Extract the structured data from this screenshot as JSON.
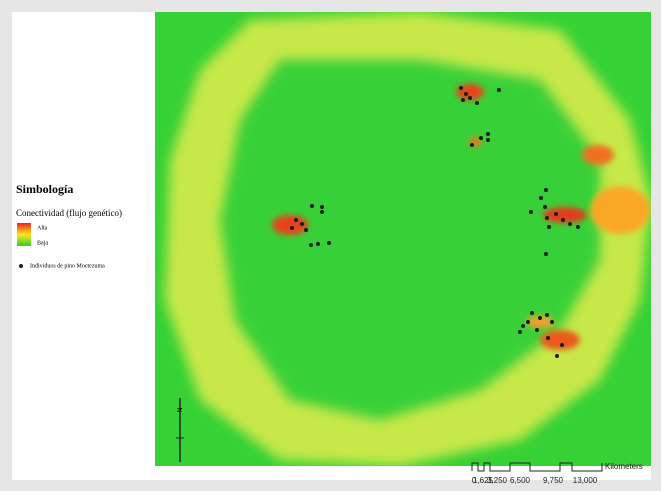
{
  "legend": {
    "title": "Simbología",
    "layer": "Conectividad (flujo genético)",
    "high": "Alta",
    "low": "Baja",
    "points": "Individuos de pino Moctezuma"
  },
  "north_arrow": "N",
  "scale_bar": {
    "labels": [
      "0",
      "1,625",
      "3,250",
      "6,500",
      "9,750",
      "13,000"
    ],
    "unit": "Kilometers"
  }
}
